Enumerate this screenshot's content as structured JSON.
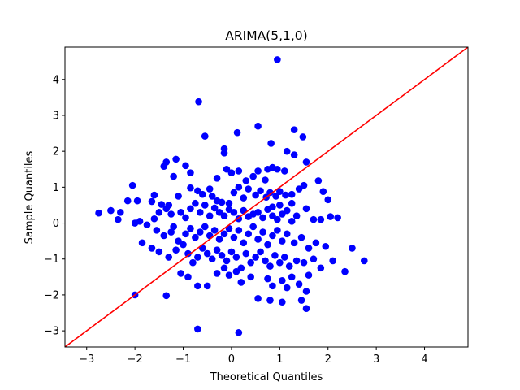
{
  "chart_data": {
    "type": "scatter",
    "title": "ARIMA(5,1,0)",
    "xlabel": "Theoretical Quantiles",
    "ylabel": "Sample Quantiles",
    "xlim": [
      -3.45,
      4.9
    ],
    "ylim": [
      -3.45,
      4.9
    ],
    "x_ticks": [
      -3,
      -2,
      -1,
      0,
      1,
      2,
      3,
      4
    ],
    "y_ticks": [
      -3,
      -2,
      -1,
      0,
      1,
      2,
      3,
      4
    ],
    "x_tick_labels": [
      "−3",
      "−2",
      "−1",
      "0",
      "1",
      "2",
      "3",
      "4"
    ],
    "y_tick_labels": [
      "−3",
      "−2",
      "−1",
      "0",
      "1",
      "2",
      "3",
      "4"
    ],
    "grid": false,
    "legend": "none",
    "colors": {
      "points": "#0000ff",
      "reference_line": "#ff0000",
      "axes": "#000000",
      "background": "#ffffff"
    },
    "reference_line": {
      "type": "45-degree",
      "x": [
        -3.45,
        4.9
      ],
      "y": [
        -3.45,
        4.9
      ]
    },
    "series": [
      {
        "name": "Sample Quantiles",
        "points": [
          [
            0.95,
            4.55
          ],
          [
            -0.68,
            3.38
          ],
          [
            -0.55,
            2.42
          ],
          [
            0.12,
            2.52
          ],
          [
            0.55,
            2.7
          ],
          [
            1.3,
            2.6
          ],
          [
            1.48,
            2.4
          ],
          [
            -0.15,
            2.07
          ],
          [
            -0.15,
            1.95
          ],
          [
            0.82,
            2.22
          ],
          [
            1.15,
            2.0
          ],
          [
            1.3,
            1.9
          ],
          [
            1.55,
            1.7
          ],
          [
            -1.35,
            1.7
          ],
          [
            -1.4,
            1.58
          ],
          [
            -1.15,
            1.78
          ],
          [
            -0.95,
            1.6
          ],
          [
            -0.85,
            1.4
          ],
          [
            -1.2,
            1.3
          ],
          [
            -0.3,
            1.25
          ],
          [
            -0.1,
            1.5
          ],
          [
            0.0,
            1.4
          ],
          [
            0.15,
            1.45
          ],
          [
            0.45,
            1.3
          ],
          [
            0.55,
            1.45
          ],
          [
            0.75,
            1.5
          ],
          [
            0.85,
            1.55
          ],
          [
            0.95,
            1.5
          ],
          [
            1.1,
            1.45
          ],
          [
            0.7,
            1.2
          ],
          [
            0.3,
            1.18
          ],
          [
            -2.05,
            1.05
          ],
          [
            -1.95,
            0.62
          ],
          [
            -2.15,
            0.62
          ],
          [
            -1.6,
            0.78
          ],
          [
            -1.65,
            0.6
          ],
          [
            -1.45,
            0.52
          ],
          [
            -1.3,
            0.5
          ],
          [
            -1.1,
            0.75
          ],
          [
            -0.85,
            0.98
          ],
          [
            -0.7,
            0.9
          ],
          [
            -0.6,
            0.8
          ],
          [
            -0.4,
            0.75
          ],
          [
            -0.45,
            0.95
          ],
          [
            -0.3,
            0.62
          ],
          [
            -0.2,
            0.58
          ],
          [
            -0.05,
            0.55
          ],
          [
            0.05,
            0.85
          ],
          [
            0.15,
            1.0
          ],
          [
            0.25,
            0.7
          ],
          [
            0.35,
            0.95
          ],
          [
            0.5,
            0.78
          ],
          [
            0.6,
            0.9
          ],
          [
            0.72,
            0.72
          ],
          [
            0.8,
            0.85
          ],
          [
            0.92,
            0.75
          ],
          [
            1.0,
            0.88
          ],
          [
            1.12,
            0.78
          ],
          [
            1.25,
            0.8
          ],
          [
            1.4,
            0.95
          ],
          [
            1.5,
            1.05
          ],
          [
            1.8,
            1.18
          ],
          [
            1.9,
            0.88
          ],
          [
            2.0,
            0.65
          ],
          [
            1.25,
            0.55
          ],
          [
            1.0,
            0.5
          ],
          [
            0.85,
            0.45
          ],
          [
            -2.75,
            0.28
          ],
          [
            -2.5,
            0.35
          ],
          [
            -2.35,
            0.1
          ],
          [
            -2.3,
            0.3
          ],
          [
            -2.0,
            0.0
          ],
          [
            -1.9,
            0.05
          ],
          [
            -1.75,
            -0.05
          ],
          [
            -1.6,
            0.12
          ],
          [
            -1.5,
            0.3
          ],
          [
            -1.35,
            0.4
          ],
          [
            -1.25,
            0.25
          ],
          [
            -1.2,
            -0.1
          ],
          [
            -1.05,
            0.3
          ],
          [
            -0.95,
            0.15
          ],
          [
            -0.85,
            0.4
          ],
          [
            -0.75,
            0.55
          ],
          [
            -0.65,
            0.3
          ],
          [
            -0.55,
            0.5
          ],
          [
            -0.45,
            0.2
          ],
          [
            -0.35,
            0.42
          ],
          [
            -0.25,
            0.3
          ],
          [
            -0.15,
            0.2
          ],
          [
            -0.05,
            0.38
          ],
          [
            0.05,
            0.3
          ],
          [
            0.15,
            0.12
          ],
          [
            0.25,
            0.35
          ],
          [
            0.35,
            0.18
          ],
          [
            0.45,
            0.25
          ],
          [
            0.55,
            0.3
          ],
          [
            0.65,
            0.15
          ],
          [
            0.75,
            0.38
          ],
          [
            0.85,
            0.2
          ],
          [
            0.95,
            0.1
          ],
          [
            1.05,
            0.25
          ],
          [
            1.15,
            0.35
          ],
          [
            1.25,
            0.05
          ],
          [
            1.35,
            0.2
          ],
          [
            1.55,
            0.4
          ],
          [
            1.7,
            0.1
          ],
          [
            1.85,
            0.1
          ],
          [
            2.05,
            0.18
          ],
          [
            2.2,
            0.15
          ],
          [
            -1.55,
            -0.2
          ],
          [
            -1.4,
            -0.35
          ],
          [
            -1.25,
            -0.25
          ],
          [
            -1.1,
            -0.5
          ],
          [
            -0.95,
            -0.3
          ],
          [
            -0.85,
            -0.15
          ],
          [
            -0.75,
            -0.4
          ],
          [
            -0.65,
            -0.25
          ],
          [
            -0.55,
            -0.1
          ],
          [
            -0.45,
            -0.35
          ],
          [
            -0.35,
            -0.2
          ],
          [
            -0.25,
            -0.45
          ],
          [
            -0.15,
            -0.3
          ],
          [
            -0.05,
            -0.15
          ],
          [
            0.05,
            -0.4
          ],
          [
            0.15,
            -0.2
          ],
          [
            0.25,
            -0.55
          ],
          [
            0.35,
            -0.3
          ],
          [
            0.45,
            -0.1
          ],
          [
            0.55,
            -0.45
          ],
          [
            0.65,
            -0.25
          ],
          [
            0.75,
            -0.6
          ],
          [
            0.85,
            -0.35
          ],
          [
            0.95,
            -0.2
          ],
          [
            1.05,
            -0.5
          ],
          [
            1.15,
            -0.3
          ],
          [
            1.3,
            -0.55
          ],
          [
            1.45,
            -0.4
          ],
          [
            1.6,
            -0.7
          ],
          [
            1.75,
            -0.55
          ],
          [
            1.95,
            -0.65
          ],
          [
            2.1,
            -1.05
          ],
          [
            -1.85,
            -0.55
          ],
          [
            -1.65,
            -0.7
          ],
          [
            -1.5,
            -0.8
          ],
          [
            -1.3,
            -0.95
          ],
          [
            -1.15,
            -0.75
          ],
          [
            -1.0,
            -0.6
          ],
          [
            -0.9,
            -0.85
          ],
          [
            -0.8,
            -1.1
          ],
          [
            -0.7,
            -0.95
          ],
          [
            -0.6,
            -0.7
          ],
          [
            -0.5,
            -0.85
          ],
          [
            -0.4,
            -1.0
          ],
          [
            -0.3,
            -0.75
          ],
          [
            -0.2,
            -0.9
          ],
          [
            -0.1,
            -1.05
          ],
          [
            0.0,
            -0.8
          ],
          [
            0.1,
            -0.95
          ],
          [
            0.2,
            -1.25
          ],
          [
            0.3,
            -0.85
          ],
          [
            0.4,
            -1.1
          ],
          [
            0.5,
            -0.95
          ],
          [
            0.6,
            -0.8
          ],
          [
            0.7,
            -1.05
          ],
          [
            0.8,
            -1.2
          ],
          [
            0.9,
            -0.9
          ],
          [
            1.0,
            -1.1
          ],
          [
            1.1,
            -0.95
          ],
          [
            1.2,
            -1.2
          ],
          [
            1.35,
            -1.05
          ],
          [
            1.5,
            -1.1
          ],
          [
            1.7,
            -1.0
          ],
          [
            1.85,
            -1.25
          ],
          [
            2.35,
            -1.35
          ],
          [
            2.5,
            -0.7
          ],
          [
            2.75,
            -1.05
          ],
          [
            -1.05,
            -1.4
          ],
          [
            -0.9,
            -1.5
          ],
          [
            -0.7,
            -1.75
          ],
          [
            -0.5,
            -1.75
          ],
          [
            -0.3,
            -1.4
          ],
          [
            -0.15,
            -1.25
          ],
          [
            -0.05,
            -1.45
          ],
          [
            0.1,
            -1.35
          ],
          [
            0.2,
            -1.65
          ],
          [
            0.4,
            -1.5
          ],
          [
            0.55,
            -2.1
          ],
          [
            0.75,
            -1.55
          ],
          [
            0.85,
            -1.75
          ],
          [
            1.05,
            -1.6
          ],
          [
            1.15,
            -1.8
          ],
          [
            1.25,
            -1.5
          ],
          [
            1.4,
            -1.7
          ],
          [
            1.55,
            -1.9
          ],
          [
            1.6,
            -1.45
          ],
          [
            1.45,
            -2.15
          ],
          [
            1.55,
            -2.38
          ],
          [
            1.05,
            -2.2
          ],
          [
            0.8,
            -2.15
          ],
          [
            -1.35,
            -2.02
          ],
          [
            -2.0,
            -2.0
          ],
          [
            -0.7,
            -2.95
          ],
          [
            0.15,
            -3.05
          ]
        ]
      }
    ]
  }
}
